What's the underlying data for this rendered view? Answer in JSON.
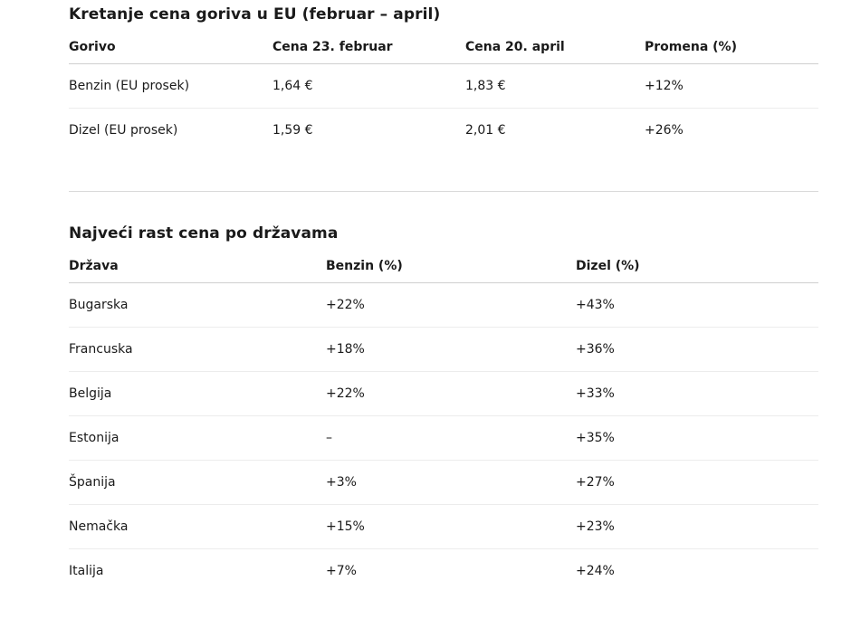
{
  "section_fuel": {
    "title": "Kretanje cena goriva u EU (februar – april)",
    "headers": [
      "Gorivo",
      "Cena 23. februar",
      "Cena 20. april",
      "Promena (%)"
    ],
    "rows": [
      [
        "Benzin (EU prosek)",
        "1,64 €",
        "1,83 €",
        "+12%"
      ],
      [
        "Dizel (EU prosek)",
        "1,59 €",
        "2,01 €",
        "+26%"
      ]
    ]
  },
  "section_countries": {
    "title": "Najveći rast cena po državama",
    "headers": [
      "Država",
      "Benzin (%)",
      "Dizel (%)"
    ],
    "rows": [
      [
        "Bugarska",
        "+22%",
        "+43%"
      ],
      [
        "Francuska",
        "+18%",
        "+36%"
      ],
      [
        "Belgija",
        "+22%",
        "+33%"
      ],
      [
        "Estonija",
        "–",
        "+35%"
      ],
      [
        "Španija",
        "+3%",
        "+27%"
      ],
      [
        "Nemačka",
        "+15%",
        "+23%"
      ],
      [
        "Italija",
        "+7%",
        "+24%"
      ]
    ]
  }
}
